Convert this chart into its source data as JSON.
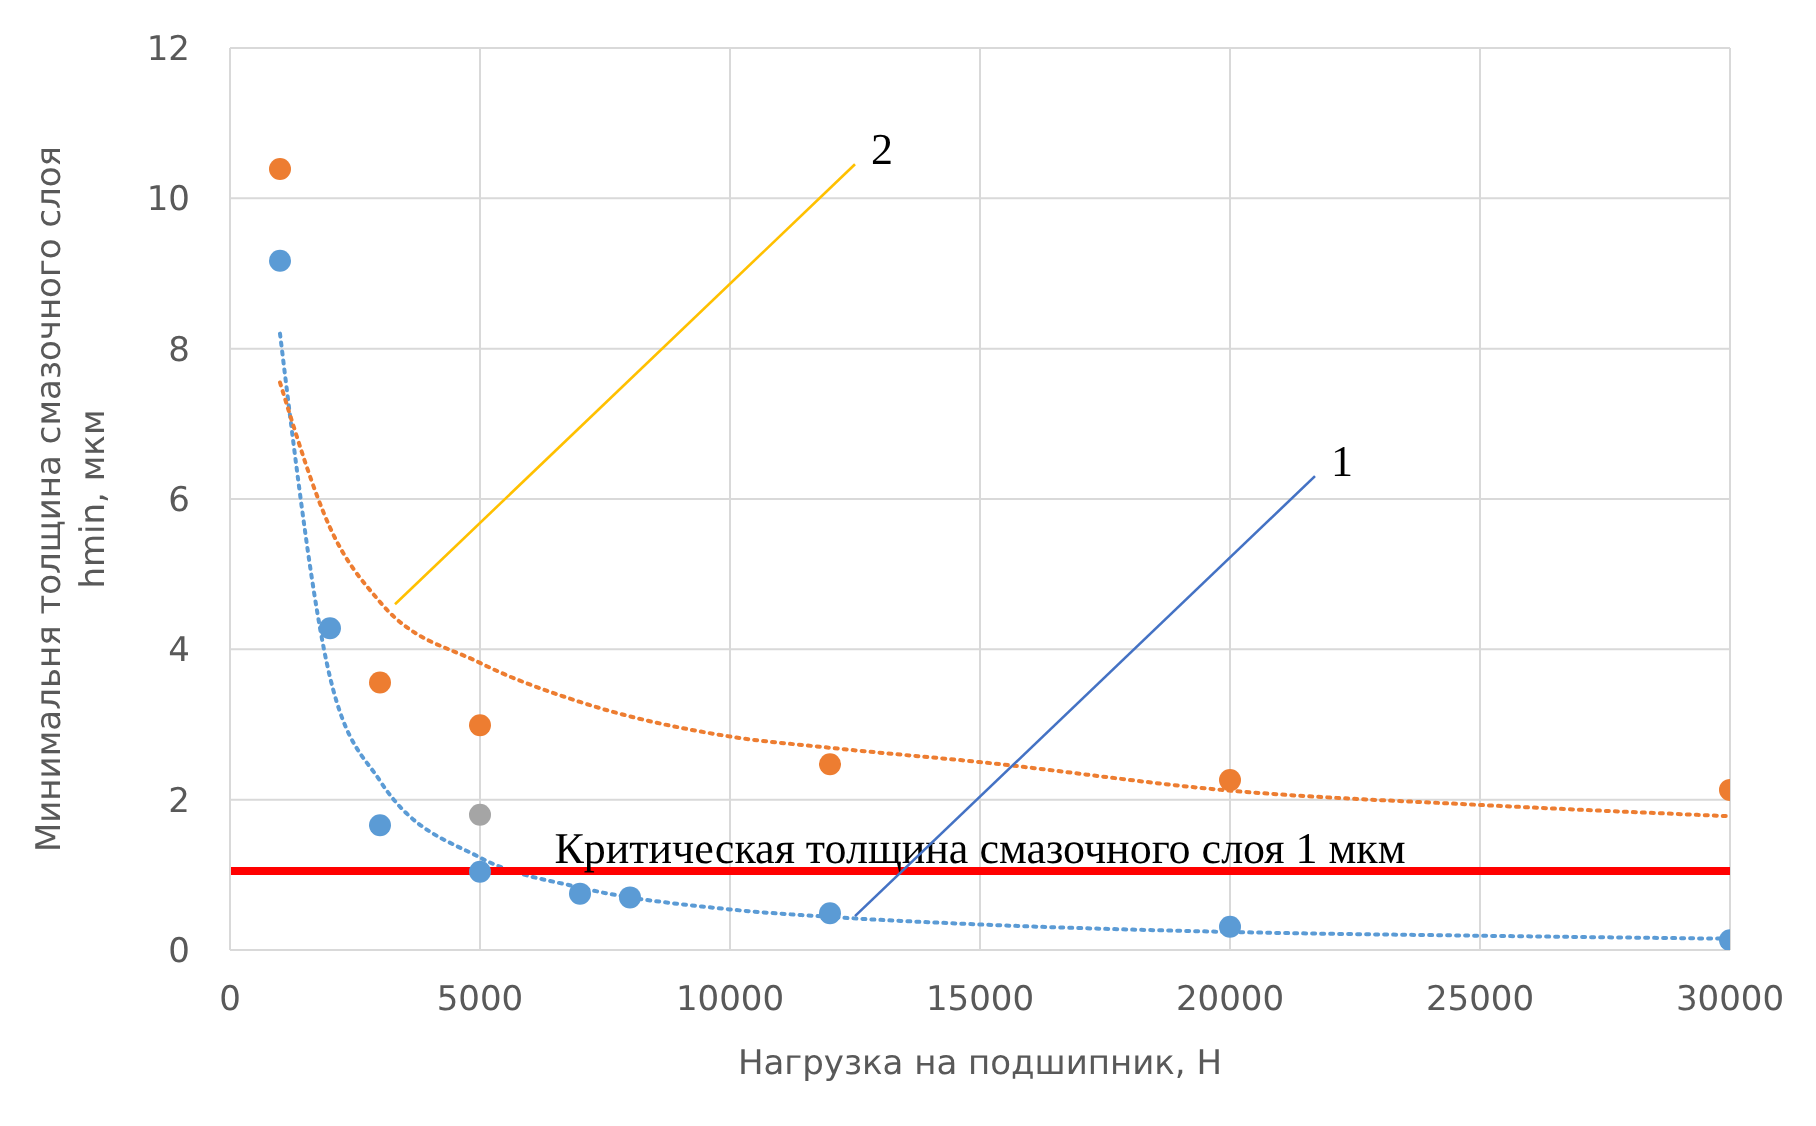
{
  "chart_data": {
    "type": "scatter",
    "xlabel": "Нагрузка на подшипник, Н",
    "ylabel": "Минимальня толщина смазочного слоя hmin, мкм",
    "xlim": [
      0,
      30000
    ],
    "xticks": [
      0,
      5000,
      10000,
      15000,
      20000,
      25000,
      30000
    ],
    "ylim": [
      0,
      12
    ],
    "yticks": [
      0,
      2,
      4,
      6,
      8,
      10,
      12
    ],
    "grid": true,
    "marker": "circle",
    "series": [
      {
        "color": "#5b9bd5",
        "x": [
          1000,
          2000,
          3000,
          5000,
          7000,
          8000,
          12000,
          20000,
          30000
        ],
        "values": [
          9.17,
          4.28,
          1.66,
          1.04,
          0.75,
          0.7,
          0.49,
          0.31,
          0.13
        ]
      },
      {
        "color": "#ed7d31",
        "x": [
          1000,
          3000,
          5000,
          12000,
          20000,
          30000
        ],
        "values": [
          10.39,
          3.56,
          2.99,
          2.47,
          2.26,
          2.13
        ]
      },
      {
        "color": "#a5a5a5",
        "x": [
          5000
        ],
        "values": [
          1.8
        ]
      },
      {
        "type": "line",
        "line_style": "dotted",
        "marker": "none",
        "color": "#5b9bd5",
        "x": [
          1000,
          2000,
          3000,
          5000,
          7000,
          10000,
          12000,
          15000,
          20000,
          25000,
          30000
        ],
        "values": [
          8.2,
          3.63,
          2.25,
          1.23,
          0.83,
          0.54,
          0.44,
          0.34,
          0.24,
          0.19,
          0.15
        ]
      },
      {
        "type": "line",
        "line_style": "dotted",
        "marker": "none",
        "color": "#ed7d31",
        "x": [
          1000,
          2000,
          3000,
          5000,
          7000,
          10000,
          12000,
          15000,
          20000,
          25000,
          30000
        ],
        "values": [
          7.55,
          5.62,
          4.63,
          3.82,
          3.3,
          2.84,
          2.69,
          2.5,
          2.12,
          1.93,
          1.78
        ]
      }
    ],
    "ref_lines": [
      {
        "axis": "y",
        "value": 1.05,
        "label": "Критическая толщина смазочного слоя 1 мкм",
        "color": "#ff0000",
        "line_style": "solid"
      }
    ],
    "annotations": [
      {
        "text": "1",
        "x": 12500,
        "y": 0.45
      },
      {
        "text": "2",
        "x": 3300,
        "y": 4.6
      }
    ]
  }
}
